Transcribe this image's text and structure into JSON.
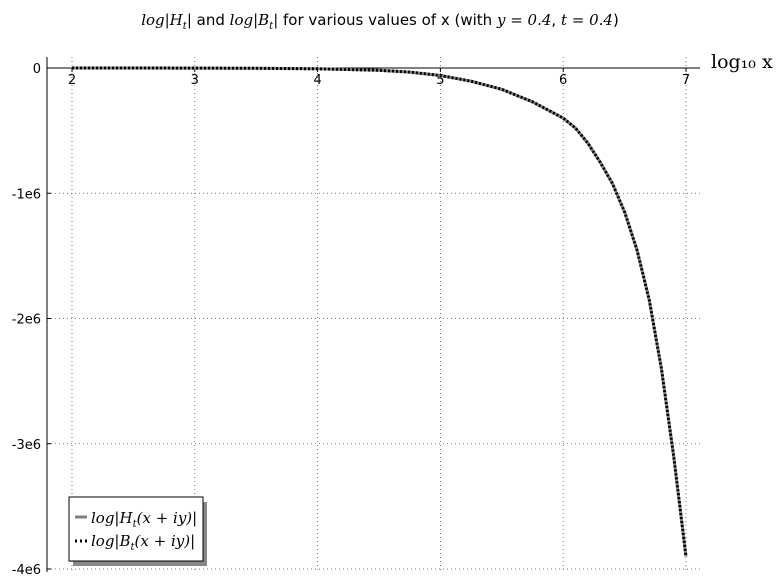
{
  "chart_data": {
    "type": "line",
    "title": "log|H_t| and log|B_t| for various values of x (with y = 0.4, t = 0.4)",
    "title_parts": {
      "t1": "log|H",
      "t1_sub": "t",
      "t1_end": "|",
      "and": " and ",
      "t2": "log|B",
      "t2_sub": "t",
      "t2_end": "|",
      "mid": " for various values of x (with ",
      "y_eq": "y = 0.4",
      "sep": ", ",
      "t_eq": "t = 0.4",
      "close": ")"
    },
    "xlabel": "log₁₀ x",
    "ylabel": "",
    "x_ticks": [
      "2",
      "3",
      "4",
      "5",
      "6",
      "7"
    ],
    "y_ticks": [
      "0",
      "-1e6",
      "-2e6",
      "-3e6",
      "-4e6"
    ],
    "xlim": [
      2,
      7
    ],
    "ylim": [
      -4000000,
      0
    ],
    "grid": true,
    "legend_position": "bottom-left",
    "series": [
      {
        "name": "log|H_t(x+iy)|",
        "style": "solid",
        "color": "#808080",
        "x": [
          2.0,
          2.5,
          3.0,
          3.5,
          4.0,
          4.5,
          4.75,
          5.0,
          5.25,
          5.5,
          5.75,
          6.0,
          6.1,
          6.2,
          6.3,
          6.4,
          6.5,
          6.6,
          6.7,
          6.8,
          6.9,
          7.0
        ],
        "y": [
          -60,
          -200,
          -600,
          -2000,
          -6000,
          -18000,
          -33000,
          -60000,
          -105000,
          -170000,
          -270000,
          -400000,
          -480000,
          -600000,
          -750000,
          -920000,
          -1150000,
          -1450000,
          -1850000,
          -2400000,
          -3100000,
          -3900000
        ]
      },
      {
        "name": "log|B_t(x+iy)|",
        "style": "dotted",
        "color": "#000000",
        "x": [
          2.0,
          2.5,
          3.0,
          3.5,
          4.0,
          4.5,
          4.75,
          5.0,
          5.25,
          5.5,
          5.75,
          6.0,
          6.1,
          6.2,
          6.3,
          6.4,
          6.5,
          6.6,
          6.7,
          6.8,
          6.9,
          7.0
        ],
        "y": [
          -60,
          -200,
          -600,
          -2000,
          -6000,
          -18000,
          -33000,
          -60000,
          -105000,
          -170000,
          -270000,
          -400000,
          -480000,
          -600000,
          -750000,
          -920000,
          -1150000,
          -1450000,
          -1850000,
          -2400000,
          -3100000,
          -3900000
        ]
      }
    ],
    "legend": {
      "h": "log|H",
      "h_sub": "t",
      "h_end": "(x + iy)|",
      "b": "log|B",
      "b_sub": "t",
      "b_end": "(x + iy)|"
    }
  }
}
